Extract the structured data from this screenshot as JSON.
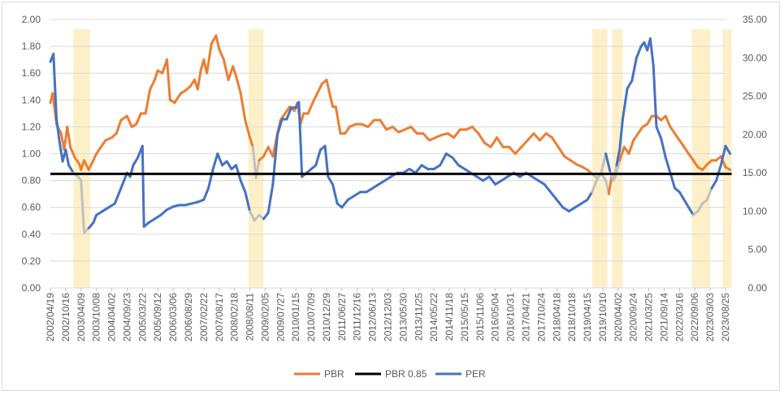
{
  "chart_data": {
    "type": "line",
    "title": "",
    "x": [
      "2002/04/19",
      "2002/10/16",
      "2003/04/09",
      "2003/10/08",
      "2004/04/02",
      "2004/09/23",
      "2005/03/22",
      "2005/09/12",
      "2006/03/06",
      "2006/08/29",
      "2007/02/22",
      "2007/08/17",
      "2008/02/18",
      "2008/08/11",
      "2009/02/05",
      "2009/07/27",
      "2010/01/15",
      "2010/07/09",
      "2010/12/29",
      "2011/06/27",
      "2011/12/16",
      "2012/06/13",
      "2012/12/03",
      "2013/05/30",
      "2013/11/25",
      "2014/05/22",
      "2014/11/18",
      "2015/05/15",
      "2015/11/06",
      "2016/05/04",
      "2016/10/31",
      "2017/04/21",
      "2017/10/24",
      "2018/04/18",
      "2018/10/18",
      "2019/04/15",
      "2019/10/10",
      "2020/04/02",
      "2020/09/24",
      "2021/03/25",
      "2021/09/14",
      "2022/03/16",
      "2022/09/06",
      "2023/03/03",
      "2023/08/25"
    ],
    "y_left": {
      "min": 0,
      "max": 2.0,
      "step": 0.2,
      "ticks": [
        "0.00",
        "0.20",
        "0.40",
        "0.60",
        "0.80",
        "1.00",
        "1.20",
        "1.40",
        "1.60",
        "1.80",
        "2.00"
      ]
    },
    "y_right": {
      "min": 0,
      "max": 35,
      "step": 5,
      "ticks": [
        "0.00",
        "5.00",
        "10.00",
        "15.00",
        "20.00",
        "25.00",
        "30.00",
        "35.00"
      ]
    },
    "series": [
      {
        "name": "PBR",
        "axis": "left",
        "color": "#ed7d31",
        "points": [
          [
            0,
            1.38
          ],
          [
            0.15,
            1.45
          ],
          [
            0.4,
            1.22
          ],
          [
            0.7,
            1.15
          ],
          [
            0.9,
            1.03
          ],
          [
            1.1,
            1.2
          ],
          [
            1.3,
            1.05
          ],
          [
            1.6,
            0.97
          ],
          [
            1.9,
            0.92
          ],
          [
            2.0,
            0.88
          ],
          [
            2.2,
            0.95
          ],
          [
            2.5,
            0.88
          ],
          [
            2.8,
            0.95
          ],
          [
            3.0,
            1.0
          ],
          [
            3.3,
            1.05
          ],
          [
            3.6,
            1.1
          ],
          [
            4.0,
            1.12
          ],
          [
            4.3,
            1.15
          ],
          [
            4.6,
            1.25
          ],
          [
            5.0,
            1.28
          ],
          [
            5.3,
            1.2
          ],
          [
            5.6,
            1.22
          ],
          [
            5.9,
            1.3
          ],
          [
            6.2,
            1.3
          ],
          [
            6.5,
            1.48
          ],
          [
            6.8,
            1.55
          ],
          [
            7.0,
            1.62
          ],
          [
            7.3,
            1.6
          ],
          [
            7.6,
            1.7
          ],
          [
            7.8,
            1.4
          ],
          [
            8.1,
            1.38
          ],
          [
            8.5,
            1.45
          ],
          [
            8.8,
            1.47
          ],
          [
            9.1,
            1.5
          ],
          [
            9.4,
            1.55
          ],
          [
            9.6,
            1.48
          ],
          [
            9.8,
            1.62
          ],
          [
            10.0,
            1.7
          ],
          [
            10.2,
            1.6
          ],
          [
            10.5,
            1.82
          ],
          [
            10.8,
            1.88
          ],
          [
            11.0,
            1.78
          ],
          [
            11.3,
            1.7
          ],
          [
            11.6,
            1.55
          ],
          [
            11.9,
            1.65
          ],
          [
            12.1,
            1.58
          ],
          [
            12.4,
            1.45
          ],
          [
            12.7,
            1.25
          ],
          [
            13.0,
            1.12
          ],
          [
            13.2,
            1.05
          ],
          [
            13.4,
            0.82
          ],
          [
            13.6,
            0.95
          ],
          [
            13.9,
            0.98
          ],
          [
            14.2,
            1.05
          ],
          [
            14.5,
            0.98
          ],
          [
            14.8,
            1.15
          ],
          [
            15.0,
            1.25
          ],
          [
            15.3,
            1.3
          ],
          [
            15.6,
            1.35
          ],
          [
            15.9,
            1.32
          ],
          [
            16.1,
            1.38
          ],
          [
            16.3,
            1.22
          ],
          [
            16.5,
            1.3
          ],
          [
            16.8,
            1.3
          ],
          [
            17.1,
            1.38
          ],
          [
            17.4,
            1.45
          ],
          [
            17.7,
            1.52
          ],
          [
            18.0,
            1.55
          ],
          [
            18.2,
            1.45
          ],
          [
            18.4,
            1.35
          ],
          [
            18.6,
            1.35
          ],
          [
            18.9,
            1.15
          ],
          [
            19.2,
            1.15
          ],
          [
            19.5,
            1.2
          ],
          [
            19.9,
            1.22
          ],
          [
            20.3,
            1.22
          ],
          [
            20.7,
            1.2
          ],
          [
            21.1,
            1.25
          ],
          [
            21.5,
            1.25
          ],
          [
            21.9,
            1.18
          ],
          [
            22.3,
            1.2
          ],
          [
            22.7,
            1.16
          ],
          [
            23.1,
            1.18
          ],
          [
            23.5,
            1.2
          ],
          [
            23.9,
            1.15
          ],
          [
            24.3,
            1.15
          ],
          [
            24.7,
            1.1
          ],
          [
            25.1,
            1.12
          ],
          [
            25.5,
            1.14
          ],
          [
            25.9,
            1.15
          ],
          [
            26.3,
            1.12
          ],
          [
            26.7,
            1.18
          ],
          [
            27.1,
            1.18
          ],
          [
            27.5,
            1.2
          ],
          [
            27.9,
            1.15
          ],
          [
            28.3,
            1.08
          ],
          [
            28.7,
            1.05
          ],
          [
            29.1,
            1.12
          ],
          [
            29.5,
            1.05
          ],
          [
            29.9,
            1.05
          ],
          [
            30.3,
            1.0
          ],
          [
            30.7,
            1.05
          ],
          [
            31.1,
            1.1
          ],
          [
            31.5,
            1.15
          ],
          [
            31.9,
            1.1
          ],
          [
            32.3,
            1.15
          ],
          [
            32.7,
            1.12
          ],
          [
            33.1,
            1.05
          ],
          [
            33.5,
            0.98
          ],
          [
            33.9,
            0.95
          ],
          [
            34.3,
            0.92
          ],
          [
            34.7,
            0.9
          ],
          [
            35.0,
            0.88
          ],
          [
            35.3,
            0.85
          ],
          [
            35.6,
            0.82
          ],
          [
            35.9,
            0.85
          ],
          [
            36.2,
            0.8
          ],
          [
            36.4,
            0.7
          ],
          [
            36.6,
            0.85
          ],
          [
            36.8,
            0.82
          ],
          [
            37.1,
            0.95
          ],
          [
            37.4,
            1.05
          ],
          [
            37.7,
            1.0
          ],
          [
            38.0,
            1.1
          ],
          [
            38.3,
            1.15
          ],
          [
            38.6,
            1.2
          ],
          [
            38.9,
            1.22
          ],
          [
            39.2,
            1.28
          ],
          [
            39.5,
            1.28
          ],
          [
            39.8,
            1.25
          ],
          [
            40.1,
            1.28
          ],
          [
            40.4,
            1.2
          ],
          [
            40.7,
            1.15
          ],
          [
            41.0,
            1.1
          ],
          [
            41.3,
            1.05
          ],
          [
            41.6,
            1.0
          ],
          [
            41.9,
            0.95
          ],
          [
            42.2,
            0.9
          ],
          [
            42.5,
            0.88
          ],
          [
            42.8,
            0.92
          ],
          [
            43.1,
            0.95
          ],
          [
            43.4,
            0.95
          ],
          [
            43.7,
            0.98
          ],
          [
            44.0,
            0.9
          ],
          [
            44.3,
            0.88
          ]
        ]
      },
      {
        "name": "PBR 0.85",
        "axis": "left",
        "color": "#000000",
        "points": [
          [
            0,
            0.85
          ],
          [
            44.4,
            0.85
          ]
        ]
      },
      {
        "name": "PER",
        "axis": "right",
        "color": "#4472c4",
        "points": [
          [
            0,
            29.5
          ],
          [
            0.2,
            30.5
          ],
          [
            0.4,
            22.0
          ],
          [
            0.6,
            19.0
          ],
          [
            0.8,
            16.5
          ],
          [
            1.0,
            18.0
          ],
          [
            1.2,
            16.0
          ],
          [
            1.5,
            15.0
          ],
          [
            1.8,
            14.5
          ],
          [
            2.0,
            14.0
          ],
          [
            2.2,
            7.2
          ],
          [
            2.5,
            7.8
          ],
          [
            2.8,
            8.5
          ],
          [
            3.0,
            9.5
          ],
          [
            3.4,
            10.0
          ],
          [
            3.8,
            10.5
          ],
          [
            4.2,
            11.0
          ],
          [
            4.6,
            13.0
          ],
          [
            5.0,
            15.0
          ],
          [
            5.2,
            14.5
          ],
          [
            5.4,
            16.0
          ],
          [
            5.7,
            17.0
          ],
          [
            6.0,
            18.5
          ],
          [
            6.1,
            8.0
          ],
          [
            6.4,
            8.5
          ],
          [
            6.8,
            9.0
          ],
          [
            7.2,
            9.5
          ],
          [
            7.6,
            10.2
          ],
          [
            8.0,
            10.6
          ],
          [
            8.4,
            10.8
          ],
          [
            8.8,
            10.8
          ],
          [
            9.2,
            11.0
          ],
          [
            9.6,
            11.2
          ],
          [
            10.0,
            11.5
          ],
          [
            10.3,
            13.0
          ],
          [
            10.6,
            15.5
          ],
          [
            10.9,
            17.5
          ],
          [
            11.2,
            16.0
          ],
          [
            11.5,
            16.5
          ],
          [
            11.8,
            15.5
          ],
          [
            12.1,
            16.0
          ],
          [
            12.4,
            14.0
          ],
          [
            12.7,
            12.5
          ],
          [
            13.0,
            10.0
          ],
          [
            13.3,
            8.8
          ],
          [
            13.6,
            9.5
          ],
          [
            13.9,
            9.0
          ],
          [
            14.2,
            9.8
          ],
          [
            14.5,
            13.5
          ],
          [
            14.8,
            20.0
          ],
          [
            15.1,
            22.0
          ],
          [
            15.4,
            22.0
          ],
          [
            15.7,
            23.5
          ],
          [
            16.0,
            23.5
          ],
          [
            16.2,
            24.2
          ],
          [
            16.4,
            14.5
          ],
          [
            16.7,
            15.0
          ],
          [
            17.0,
            15.5
          ],
          [
            17.3,
            16.0
          ],
          [
            17.6,
            18.0
          ],
          [
            17.9,
            18.5
          ],
          [
            18.1,
            14.5
          ],
          [
            18.4,
            13.5
          ],
          [
            18.7,
            11.0
          ],
          [
            19.0,
            10.5
          ],
          [
            19.4,
            11.5
          ],
          [
            19.8,
            12.0
          ],
          [
            20.2,
            12.5
          ],
          [
            20.6,
            12.5
          ],
          [
            21.0,
            13.0
          ],
          [
            21.4,
            13.5
          ],
          [
            21.8,
            14.0
          ],
          [
            22.2,
            14.5
          ],
          [
            22.6,
            15.0
          ],
          [
            23.0,
            15.0
          ],
          [
            23.4,
            15.5
          ],
          [
            23.8,
            15.0
          ],
          [
            24.2,
            16.0
          ],
          [
            24.6,
            15.5
          ],
          [
            25.0,
            15.5
          ],
          [
            25.4,
            16.0
          ],
          [
            25.8,
            17.5
          ],
          [
            26.2,
            17.0
          ],
          [
            26.6,
            16.0
          ],
          [
            27.0,
            15.5
          ],
          [
            27.4,
            15.0
          ],
          [
            27.8,
            14.5
          ],
          [
            28.2,
            14.0
          ],
          [
            28.6,
            14.5
          ],
          [
            29.0,
            13.5
          ],
          [
            29.4,
            14.0
          ],
          [
            29.8,
            14.5
          ],
          [
            30.2,
            15.0
          ],
          [
            30.6,
            14.5
          ],
          [
            31.0,
            15.0
          ],
          [
            31.4,
            14.5
          ],
          [
            31.8,
            14.0
          ],
          [
            32.2,
            13.5
          ],
          [
            32.6,
            12.5
          ],
          [
            33.0,
            11.5
          ],
          [
            33.4,
            10.5
          ],
          [
            33.8,
            10.0
          ],
          [
            34.2,
            10.5
          ],
          [
            34.6,
            11.0
          ],
          [
            35.0,
            11.5
          ],
          [
            35.3,
            12.5
          ],
          [
            35.6,
            14.0
          ],
          [
            35.9,
            15.0
          ],
          [
            36.2,
            17.5
          ],
          [
            36.5,
            15.0
          ],
          [
            36.7,
            14.0
          ],
          [
            36.9,
            16.0
          ],
          [
            37.1,
            18.0
          ],
          [
            37.3,
            22.0
          ],
          [
            37.6,
            26.0
          ],
          [
            37.9,
            27.0
          ],
          [
            38.2,
            30.0
          ],
          [
            38.5,
            31.5
          ],
          [
            38.7,
            32.0
          ],
          [
            38.9,
            31.0
          ],
          [
            39.1,
            32.5
          ],
          [
            39.3,
            29.0
          ],
          [
            39.5,
            21.0
          ],
          [
            39.8,
            19.5
          ],
          [
            40.1,
            17.0
          ],
          [
            40.4,
            15.0
          ],
          [
            40.7,
            13.0
          ],
          [
            41.0,
            12.5
          ],
          [
            41.3,
            11.5
          ],
          [
            41.6,
            10.5
          ],
          [
            41.9,
            9.5
          ],
          [
            42.2,
            10.0
          ],
          [
            42.5,
            11.0
          ],
          [
            42.8,
            11.5
          ],
          [
            43.1,
            13.0
          ],
          [
            43.4,
            14.0
          ],
          [
            43.7,
            16.0
          ],
          [
            44.0,
            18.5
          ],
          [
            44.3,
            17.5
          ]
        ]
      }
    ],
    "highlight_bands": [
      [
        1.5,
        2.6
      ],
      [
        12.9,
        13.9
      ],
      [
        35.3,
        36.3
      ],
      [
        36.6,
        37.3
      ],
      [
        41.8,
        43.0
      ],
      [
        43.8,
        44.4
      ]
    ],
    "highlight_color": "#fdf0c9",
    "dimmed_line_color": "#c0c0c0",
    "legend": [
      "PBR",
      "PBR 0.85",
      "PER"
    ],
    "legend_position": "bottom-center",
    "grid": true
  }
}
